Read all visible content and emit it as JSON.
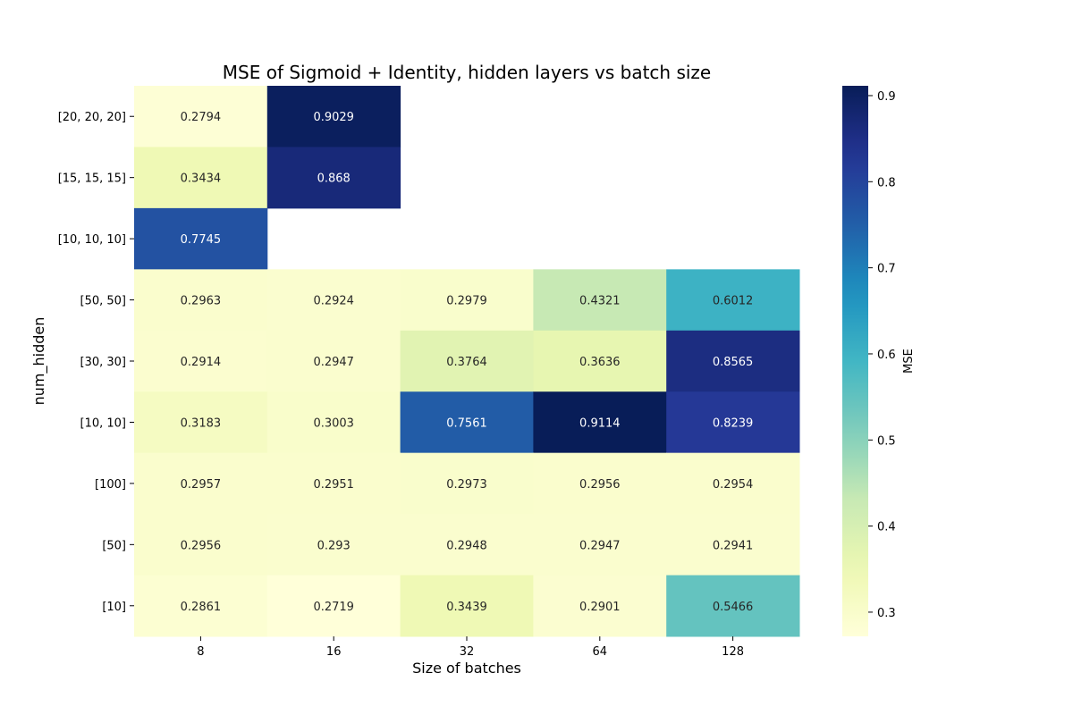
{
  "chart_data": {
    "type": "heatmap",
    "title": "MSE of Sigmoid + Identity, hidden layers vs batch size",
    "xlabel": "Size of batches",
    "ylabel": "num_hidden",
    "x_categories": [
      "8",
      "16",
      "32",
      "64",
      "128"
    ],
    "y_categories": [
      "[20, 20, 20]",
      "[15, 15, 15]",
      "[10, 10, 10]",
      "[50, 50]",
      "[30, 30]",
      "[10, 10]",
      "[100]",
      "[50]",
      "[10]"
    ],
    "values": [
      [
        0.2794,
        0.9029,
        null,
        null,
        null
      ],
      [
        0.3434,
        0.868,
        null,
        null,
        null
      ],
      [
        0.7745,
        null,
        null,
        null,
        null
      ],
      [
        0.2963,
        0.2924,
        0.2979,
        0.4321,
        0.6012
      ],
      [
        0.2914,
        0.2947,
        0.3764,
        0.3636,
        0.8565
      ],
      [
        0.3183,
        0.3003,
        0.7561,
        0.9114,
        0.8239
      ],
      [
        0.2957,
        0.2951,
        0.2973,
        0.2956,
        0.2954
      ],
      [
        0.2956,
        0.293,
        0.2948,
        0.2947,
        0.2941
      ],
      [
        0.2861,
        0.2719,
        0.3439,
        0.2901,
        0.5466
      ]
    ],
    "colormap": "YlGnBu",
    "vmin": 0.2719,
    "vmax": 0.9114,
    "colorbar": {
      "label": "MSE",
      "ticks": [
        "0.3",
        "0.4",
        "0.5",
        "0.6",
        "0.7",
        "0.8",
        "0.9"
      ]
    },
    "grid": false,
    "legend": "colorbar-right"
  }
}
